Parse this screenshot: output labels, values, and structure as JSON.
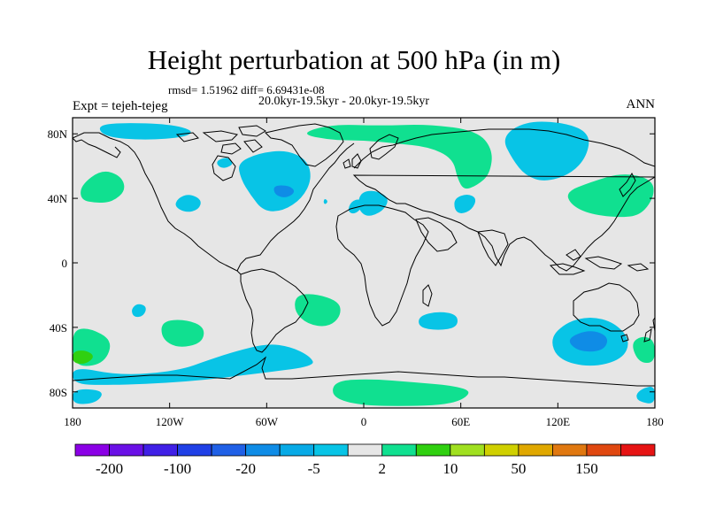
{
  "title": "Height perturbation at 500 hPa (in m)",
  "stats": "rmsd= 1.51962 diff= 6.69431e-08",
  "period": "20.0kyr-19.5kyr - 20.0kyr-19.5kyr",
  "experiment": "Expt = tejeh-tejeg",
  "season": "ANN",
  "map": {
    "projection": "cylindrical-equidistant",
    "lon_range": [
      -180,
      180
    ],
    "lat_range": [
      -90,
      90
    ],
    "land_color": "#e6e6e6",
    "coastline_color": "#000000",
    "lat_ticks": [
      {
        "value": 80,
        "label": "80N"
      },
      {
        "value": 40,
        "label": "40N"
      },
      {
        "value": 0,
        "label": "0"
      },
      {
        "value": -40,
        "label": "40S"
      },
      {
        "value": -80,
        "label": "80S"
      }
    ],
    "lon_ticks": [
      {
        "value": -180,
        "label": "180"
      },
      {
        "value": -120,
        "label": "120W"
      },
      {
        "value": -60,
        "label": "60W"
      },
      {
        "value": 0,
        "label": "0"
      },
      {
        "value": 60,
        "label": "60E"
      },
      {
        "value": 120,
        "label": "120E"
      },
      {
        "value": 180,
        "label": "180"
      }
    ]
  },
  "chart_data": {
    "type": "heatmap",
    "title": "Height perturbation at 500 hPa (in m)",
    "xlabel": "",
    "ylabel": "",
    "xlim": [
      -180,
      180
    ],
    "ylim": [
      -90,
      90
    ],
    "colorbar": {
      "colors": [
        "#8b00e6",
        "#6a10e6",
        "#4020e6",
        "#2040e6",
        "#2060e6",
        "#0f8ce6",
        "#08aae6",
        "#08c4e6",
        "#e6e6e6",
        "#10e090",
        "#30d010",
        "#a0e020",
        "#d0d000",
        "#e0a800",
        "#e07810",
        "#e04810",
        "#e61414"
      ],
      "labels": [
        {
          "after_box": 1,
          "text": "-200"
        },
        {
          "after_box": 3,
          "text": "-100"
        },
        {
          "after_box": 5,
          "text": "-20"
        },
        {
          "after_box": 7,
          "text": "-5"
        },
        {
          "after_box": 9,
          "text": "2"
        },
        {
          "after_box": 11,
          "text": "10"
        },
        {
          "after_box": 13,
          "text": "50"
        },
        {
          "after_box": 15,
          "text": "150"
        }
      ]
    },
    "regions": [
      {
        "name": "north-pacific-negative",
        "level": "-5 to -2",
        "color": "#08c4e6",
        "polygon": [
          [
            -165,
            85
          ],
          [
            -150,
            87
          ],
          [
            -120,
            86
          ],
          [
            -105,
            82
          ],
          [
            -110,
            78
          ],
          [
            -135,
            76
          ],
          [
            -160,
            78
          ]
        ]
      },
      {
        "name": "north-atlantic-negative",
        "level": "-5 to -2",
        "color": "#08c4e6",
        "polygon": [
          [
            -78,
            62
          ],
          [
            -65,
            68
          ],
          [
            -48,
            70
          ],
          [
            -35,
            64
          ],
          [
            -32,
            52
          ],
          [
            -38,
            40
          ],
          [
            -50,
            32
          ],
          [
            -62,
            32
          ],
          [
            -70,
            42
          ],
          [
            -76,
            52
          ]
        ]
      },
      {
        "name": "north-atlantic-core",
        "level": "-20 to -5",
        "color": "#0f8ce6",
        "polygon": [
          [
            -56,
            48
          ],
          [
            -46,
            48
          ],
          [
            -42,
            44
          ],
          [
            -48,
            40
          ],
          [
            -55,
            42
          ]
        ]
      },
      {
        "name": "labrador-small-negative",
        "level": "-5 to -2",
        "color": "#08c4e6",
        "polygon": [
          [
            -92,
            63
          ],
          [
            -84,
            66
          ],
          [
            -80,
            61
          ],
          [
            -88,
            58
          ]
        ]
      },
      {
        "name": "siberia-negative",
        "level": "-5 to -2",
        "color": "#08c4e6",
        "polygon": [
          [
            85,
            78
          ],
          [
            100,
            88
          ],
          [
            125,
            87
          ],
          [
            140,
            80
          ],
          [
            138,
            66
          ],
          [
            128,
            55
          ],
          [
            112,
            50
          ],
          [
            100,
            54
          ],
          [
            92,
            64
          ]
        ]
      },
      {
        "name": "mediterranean-negative",
        "level": "-5 to -2",
        "color": "#08c4e6",
        "polygon": [
          [
            -2,
            44
          ],
          [
            8,
            45
          ],
          [
            16,
            40
          ],
          [
            12,
            32
          ],
          [
            2,
            28
          ],
          [
            -4,
            34
          ]
        ]
      },
      {
        "name": "black-sea-negative",
        "level": "-5 to -2",
        "color": "#08c4e6",
        "polygon": [
          [
            -8,
            38
          ],
          [
            -2,
            40
          ],
          [
            -1,
            34
          ],
          [
            -6,
            30
          ],
          [
            -10,
            32
          ]
        ]
      },
      {
        "name": "caspian-negative",
        "level": "-5 to -2",
        "color": "#08c4e6",
        "polygon": [
          [
            56,
            40
          ],
          [
            64,
            43
          ],
          [
            70,
            40
          ],
          [
            67,
            33
          ],
          [
            60,
            30
          ],
          [
            56,
            33
          ]
        ]
      },
      {
        "name": "east-pacific-negative",
        "level": "-5 to -2",
        "color": "#08c4e6",
        "polygon": [
          [
            -115,
            40
          ],
          [
            -108,
            43
          ],
          [
            -100,
            39
          ],
          [
            -102,
            33
          ],
          [
            -110,
            31
          ],
          [
            -117,
            35
          ]
        ]
      },
      {
        "name": "atlantic-small-negative",
        "level": "-5 to -2",
        "color": "#08c4e6",
        "polygon": [
          [
            -25,
            38
          ],
          [
            -24,
            40
          ],
          [
            -22,
            38
          ],
          [
            -24,
            36
          ]
        ]
      },
      {
        "name": "south-pacific-small-negative",
        "level": "-5 to -2",
        "color": "#08c4e6",
        "polygon": [
          [
            -144,
            -29
          ],
          [
            -140,
            -25
          ],
          [
            -134,
            -27
          ],
          [
            -136,
            -33
          ],
          [
            -142,
            -34
          ]
        ]
      },
      {
        "name": "south-indian-negative",
        "level": "-5 to -2",
        "color": "#08c4e6",
        "polygon": [
          [
            34,
            -33
          ],
          [
            46,
            -30
          ],
          [
            58,
            -32
          ],
          [
            58,
            -40
          ],
          [
            46,
            -42
          ],
          [
            34,
            -40
          ]
        ]
      },
      {
        "name": "southern-ocean-negative",
        "level": "-5 to -2",
        "color": "#08c4e6",
        "polygon": [
          [
            -180,
            -64
          ],
          [
            -150,
            -70
          ],
          [
            -115,
            -67
          ],
          [
            -95,
            -60
          ],
          [
            -80,
            -55
          ],
          [
            -60,
            -50
          ],
          [
            -45,
            -52
          ],
          [
            -33,
            -58
          ],
          [
            -30,
            -64
          ],
          [
            -60,
            -68
          ],
          [
            -110,
            -74
          ],
          [
            -160,
            -76
          ],
          [
            -180,
            -75
          ]
        ]
      },
      {
        "name": "australia-negative",
        "level": "-5 to -2",
        "color": "#08c4e6",
        "polygon": [
          [
            115,
            -47
          ],
          [
            125,
            -37
          ],
          [
            140,
            -33
          ],
          [
            155,
            -37
          ],
          [
            165,
            -48
          ],
          [
            160,
            -60
          ],
          [
            140,
            -65
          ],
          [
            120,
            -60
          ]
        ]
      },
      {
        "name": "australia-core",
        "level": "-20 to -5",
        "color": "#0f8ce6",
        "polygon": [
          [
            125,
            -47
          ],
          [
            140,
            -41
          ],
          [
            152,
            -46
          ],
          [
            148,
            -55
          ],
          [
            132,
            -55
          ]
        ]
      },
      {
        "name": "dateline-south-negative",
        "level": "-5 to -2",
        "color": "#08c4e6",
        "polygon": [
          [
            168,
            -82
          ],
          [
            172,
            -78
          ],
          [
            180,
            -76
          ],
          [
            180,
            -88
          ],
          [
            170,
            -86
          ]
        ]
      },
      {
        "name": "dateline-west-negative",
        "level": "-5 to -2",
        "color": "#08c4e6",
        "polygon": [
          [
            -180,
            -78
          ],
          [
            -160,
            -79
          ],
          [
            -165,
            -87
          ],
          [
            -180,
            -88
          ]
        ]
      },
      {
        "name": "arctic-positive",
        "level": "2 to 10",
        "color": "#10e090",
        "polygon": [
          [
            -40,
            80
          ],
          [
            -20,
            86
          ],
          [
            10,
            85
          ],
          [
            40,
            86
          ],
          [
            70,
            82
          ],
          [
            80,
            70
          ],
          [
            78,
            55
          ],
          [
            70,
            48
          ],
          [
            62,
            45
          ],
          [
            58,
            52
          ],
          [
            55,
            65
          ],
          [
            40,
            72
          ],
          [
            20,
            74
          ],
          [
            0,
            76
          ],
          [
            -20,
            76
          ]
        ]
      },
      {
        "name": "north-pacific-positive",
        "level": "2 to 10",
        "color": "#10e090",
        "polygon": [
          [
            -175,
            48
          ],
          [
            -162,
            58
          ],
          [
            -150,
            54
          ],
          [
            -147,
            45
          ],
          [
            -155,
            38
          ],
          [
            -165,
            37
          ],
          [
            -175,
            39
          ]
        ]
      },
      {
        "name": "japan-positive",
        "level": "2 to 10",
        "color": "#10e090",
        "polygon": [
          [
            125,
            44
          ],
          [
            140,
            50
          ],
          [
            160,
            56
          ],
          [
            178,
            52
          ],
          [
            180,
            42
          ],
          [
            172,
            30
          ],
          [
            160,
            28
          ],
          [
            140,
            30
          ],
          [
            128,
            36
          ]
        ]
      },
      {
        "name": "south-pacific-west-positive",
        "level": "2 to 10",
        "color": "#10e090",
        "polygon": [
          [
            -180,
            -42
          ],
          [
            -170,
            -40
          ],
          [
            -155,
            -48
          ],
          [
            -160,
            -62
          ],
          [
            -175,
            -65
          ],
          [
            -180,
            -58
          ]
        ]
      },
      {
        "name": "south-pacific-west-core",
        "level": "10 to 50",
        "color": "#30d010",
        "polygon": [
          [
            -180,
            -55
          ],
          [
            -172,
            -54
          ],
          [
            -166,
            -58
          ],
          [
            -172,
            -63
          ],
          [
            -180,
            -62
          ]
        ]
      },
      {
        "name": "south-pacific-mid-positive",
        "level": "2 to 10",
        "color": "#10e090",
        "polygon": [
          [
            -125,
            -36
          ],
          [
            -110,
            -35
          ],
          [
            -98,
            -40
          ],
          [
            -100,
            -50
          ],
          [
            -115,
            -53
          ],
          [
            -125,
            -47
          ]
        ]
      },
      {
        "name": "south-atlantic-positive",
        "level": "2 to 10",
        "color": "#10e090",
        "polygon": [
          [
            -42,
            -20
          ],
          [
            -30,
            -19
          ],
          [
            -15,
            -24
          ],
          [
            -14,
            -33
          ],
          [
            -22,
            -40
          ],
          [
            -35,
            -38
          ],
          [
            -43,
            -30
          ]
        ]
      },
      {
        "name": "east-antarctic-positive",
        "level": "2 to 10",
        "color": "#10e090",
        "polygon": [
          [
            -18,
            -73
          ],
          [
            5,
            -72
          ],
          [
            30,
            -74
          ],
          [
            55,
            -76
          ],
          [
            68,
            -80
          ],
          [
            55,
            -88
          ],
          [
            20,
            -89
          ],
          [
            -5,
            -88
          ],
          [
            -20,
            -83
          ]
        ]
      },
      {
        "name": "far-east-positive",
        "level": "2 to 10",
        "color": "#10e090",
        "polygon": [
          [
            165,
            -50
          ],
          [
            172,
            -45
          ],
          [
            180,
            -48
          ],
          [
            180,
            -62
          ],
          [
            170,
            -62
          ]
        ]
      }
    ]
  },
  "colorbar_ids": [
    "cb-0",
    "cb-1",
    "cb-2",
    "cb-3",
    "cb-4",
    "cb-5",
    "cb-6",
    "cb-7",
    "cb-8",
    "cb-9",
    "cb-10",
    "cb-11",
    "cb-12",
    "cb-13",
    "cb-14",
    "cb-15",
    "cb-16"
  ]
}
